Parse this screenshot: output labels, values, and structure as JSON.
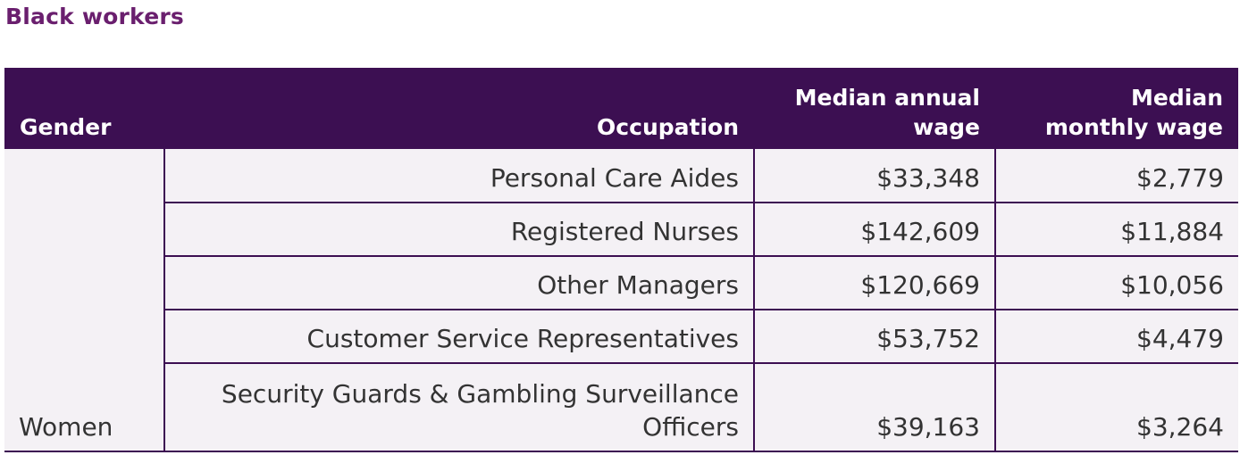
{
  "title": "Black workers",
  "table": {
    "headers": {
      "gender": "Gender",
      "occupation": "Occupation",
      "annual_line1": "Median annual",
      "annual_line2": "wage",
      "monthly_line1": "Median",
      "monthly_line2": "monthly wage"
    },
    "gender_group": "Women",
    "rows": [
      {
        "occupation": "Personal Care Aides",
        "annual": "$33,348",
        "monthly": "$2,779"
      },
      {
        "occupation": "Registered Nurses",
        "annual": "$142,609",
        "monthly": "$11,884"
      },
      {
        "occupation": "Other Managers",
        "annual": "$120,669",
        "monthly": "$10,056"
      },
      {
        "occupation": "Customer Service Representatives",
        "annual": "$53,752",
        "monthly": "$4,479"
      },
      {
        "occupation_line1": "Security Guards & Gambling Surveillance",
        "occupation_line2": "Officers",
        "annual": "$39,163",
        "monthly": "$3,264"
      }
    ]
  },
  "colors": {
    "title": "#6a1f6e",
    "header_bg": "#3c0f52",
    "cell_bg": "#f4f1f5",
    "text": "#333333"
  }
}
